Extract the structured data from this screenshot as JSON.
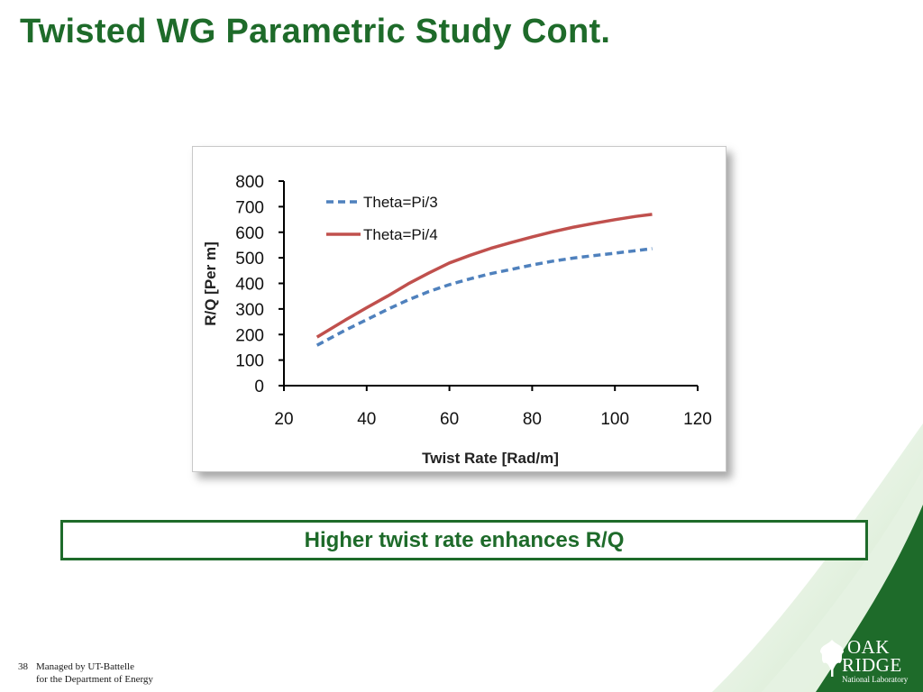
{
  "slide": {
    "title": "Twisted WG Parametric Study Cont.",
    "callout": "Higher twist rate enhances R/Q",
    "page_number": "38",
    "footer_line1": "Managed by UT-Battelle",
    "footer_line2": "for the Department of Energy",
    "logo_line1": "OAK",
    "logo_line2": "RIDGE",
    "logo_line3": "National Laboratory",
    "brand_color": "#1e6b2a"
  },
  "chart_data": {
    "type": "line",
    "title": "",
    "xlabel": "Twist Rate [Rad/m]",
    "ylabel": "R/Q [Per m]",
    "xlim": [
      20,
      120
    ],
    "ylim": [
      0,
      800
    ],
    "xticks": [
      "20",
      "40",
      "60",
      "80",
      "100",
      "120"
    ],
    "yticks": [
      "0",
      "100",
      "200",
      "300",
      "400",
      "500",
      "600",
      "700",
      "800"
    ],
    "grid": false,
    "legend": "top-left",
    "series": [
      {
        "name": "Theta=Pi/3",
        "color": "#4f81bd",
        "style": "dashed",
        "x": [
          28,
          35,
          40,
          45,
          50,
          55,
          60,
          65,
          70,
          75,
          80,
          85,
          90,
          95,
          100,
          105,
          109
        ],
        "y": [
          158,
          218,
          258,
          298,
          335,
          368,
          395,
          418,
          438,
          455,
          472,
          487,
          499,
          509,
          518,
          528,
          536
        ]
      },
      {
        "name": "Theta=Pi/4",
        "color": "#c0504d",
        "style": "solid",
        "x": [
          28,
          35,
          40,
          45,
          50,
          55,
          60,
          65,
          70,
          75,
          80,
          85,
          90,
          95,
          100,
          105,
          109
        ],
        "y": [
          190,
          258,
          305,
          350,
          398,
          440,
          480,
          510,
          537,
          560,
          582,
          602,
          620,
          635,
          649,
          662,
          670
        ]
      }
    ]
  }
}
